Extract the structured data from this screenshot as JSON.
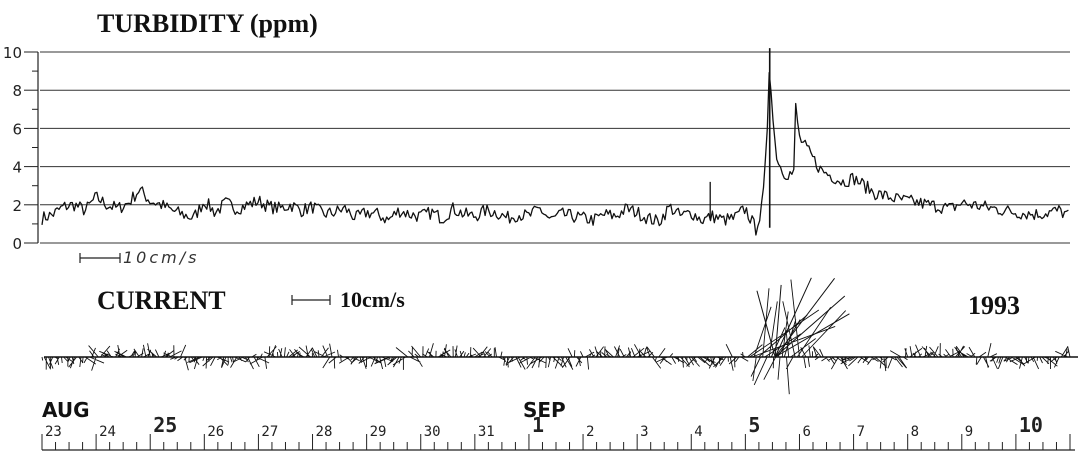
{
  "turbidity": {
    "title": "TURBIDITY (ppm)",
    "ylim": [
      0,
      10
    ],
    "y_ticks": [
      "0",
      "2",
      "4",
      "6",
      "8",
      "10"
    ],
    "scale_bar_label": "10cm/s"
  },
  "current": {
    "title": "CURRENT",
    "scale_bar_label": "10cm/s",
    "year": "1993"
  },
  "time_axis": {
    "month_labels": [
      "AUG",
      "SEP"
    ],
    "day_labels": [
      "23",
      "24",
      "25",
      "26",
      "27",
      "28",
      "29",
      "30",
      "31",
      "1",
      "2",
      "3",
      "4",
      "5",
      "6",
      "7",
      "8",
      "9",
      "10"
    ]
  },
  "chart_data": {
    "type": "line",
    "title": "TURBIDITY (ppm)",
    "xlabel": "",
    "ylabel": "",
    "ylim": [
      0,
      10
    ],
    "grid": true,
    "x_range_days": [
      23,
      42
    ],
    "series": [
      {
        "x": [
          23.0,
          23.2,
          23.4,
          23.6,
          23.8,
          24.0,
          24.2,
          24.4,
          24.6,
          24.8,
          25.0,
          25.2,
          25.4,
          25.6,
          25.8,
          26.0,
          26.2,
          26.4,
          26.6,
          26.8,
          27.0,
          27.2,
          27.4,
          27.6,
          27.8,
          28.0,
          28.2,
          28.4,
          28.6,
          28.8,
          29.0,
          29.2,
          29.4,
          29.6,
          29.8,
          30.0,
          30.2,
          30.4,
          30.6,
          30.8,
          31.0,
          31.2,
          31.4,
          31.6,
          31.8,
          32.0,
          32.2,
          32.4,
          32.6,
          32.8,
          33.0,
          33.2,
          33.4,
          33.6,
          33.8,
          34.0,
          34.2,
          34.4,
          34.6,
          34.8,
          35.0,
          35.2,
          35.4,
          35.6,
          35.8,
          36.0,
          36.2,
          36.4,
          36.8,
          37.0,
          37.4,
          37.8,
          38.0,
          38.4,
          38.8,
          39.0,
          39.4,
          39.8,
          40.0,
          40.4,
          40.8,
          41.0,
          41.4,
          41.8,
          42.0
        ],
        "values": [
          1.3,
          1.5,
          1.9,
          2.0,
          1.7,
          2.4,
          2.0,
          1.8,
          2.1,
          2.8,
          2.2,
          2.0,
          1.7,
          1.5,
          1.3,
          2.2,
          1.6,
          2.1,
          1.8,
          2.0,
          2.2,
          1.9,
          1.8,
          2.0,
          1.7,
          1.9,
          1.5,
          1.6,
          1.8,
          1.3,
          1.6,
          1.5,
          1.2,
          1.7,
          1.5,
          1.4,
          1.6,
          1.3,
          1.8,
          1.5,
          1.4,
          1.7,
          1.6,
          1.3,
          1.5,
          1.4,
          1.8,
          1.2,
          1.5,
          1.4,
          1.3,
          1.2,
          1.5,
          1.4,
          1.8,
          1.6,
          1.3,
          1.1,
          1.9,
          1.4,
          1.6,
          1.2,
          1.4,
          1.2,
          1.3,
          1.8,
          0.7,
          1.7,
          10.2,
          5.5,
          3.8,
          3.2,
          3.4,
          2.6,
          2.3,
          2.2,
          2.0,
          1.8,
          2.1,
          1.9,
          1.7,
          1.6,
          1.5,
          1.7,
          1.4
        ],
        "peak": {
          "x": 36.45,
          "value": 10.2
        }
      }
    ]
  }
}
